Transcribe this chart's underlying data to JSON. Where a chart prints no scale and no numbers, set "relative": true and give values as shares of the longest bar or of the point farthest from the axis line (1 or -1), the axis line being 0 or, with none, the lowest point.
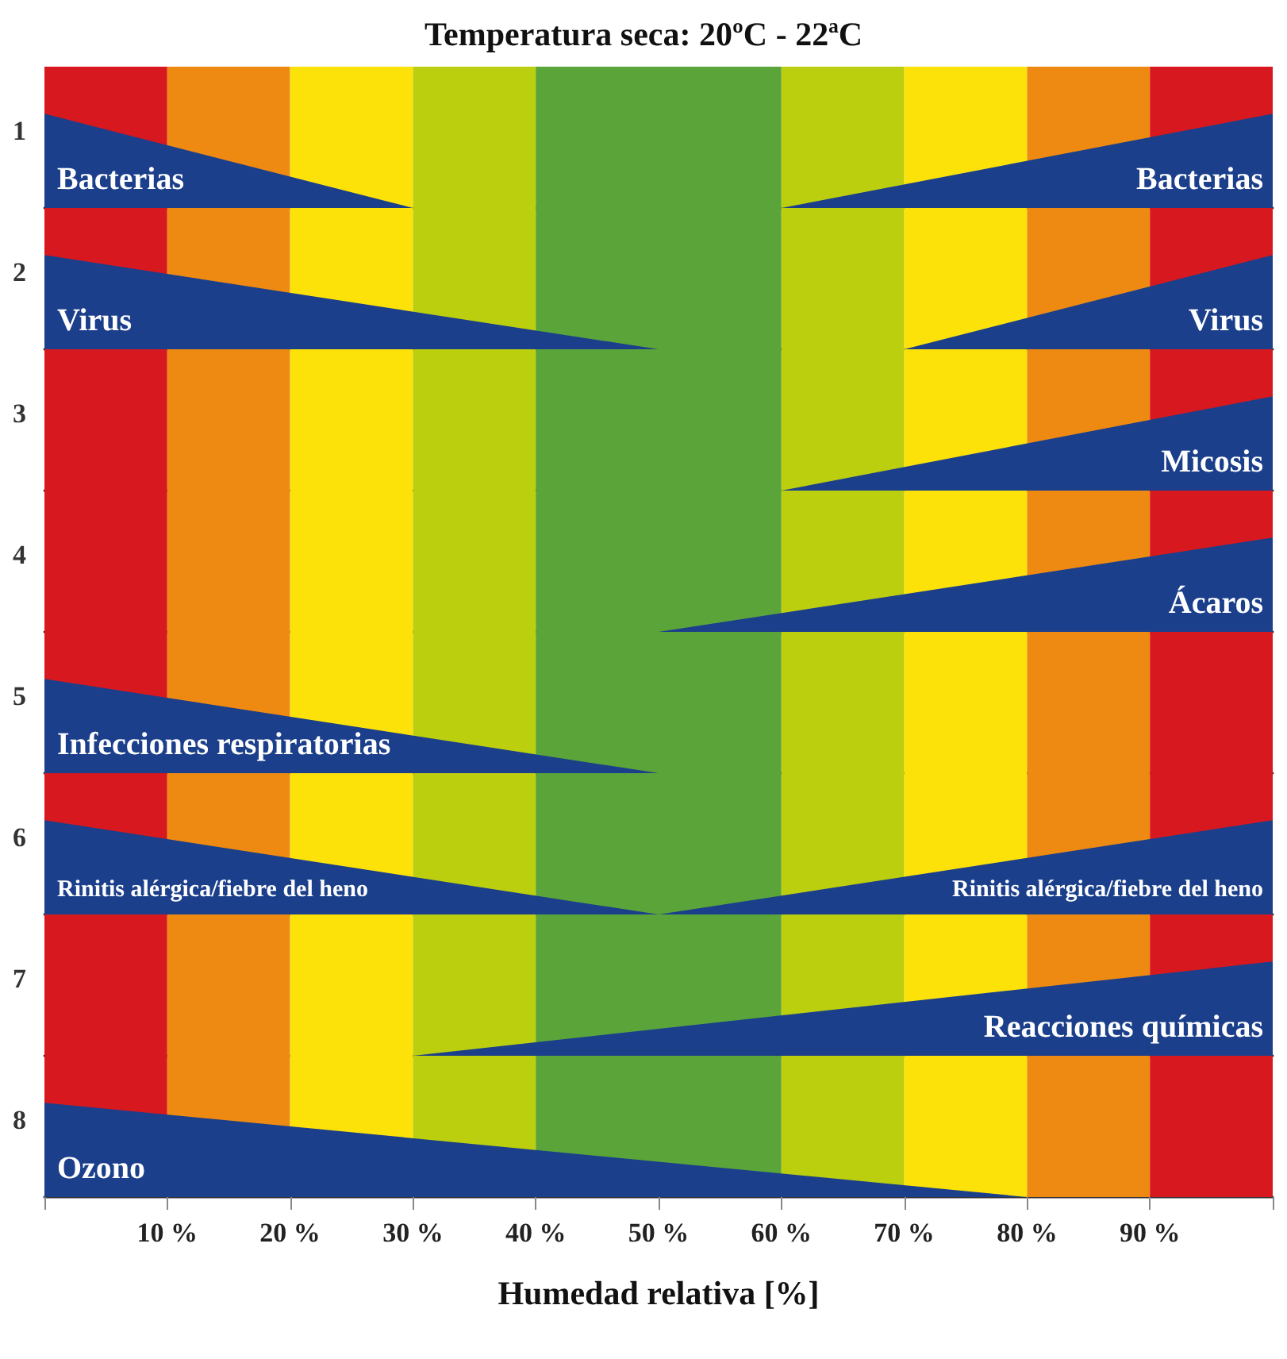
{
  "chart_data": [
    {
      "type": "area",
      "title": "Temperatura seca: 20ºC - 22ªC",
      "ylabel": "1",
      "relative": true,
      "xlim": [
        0,
        100
      ],
      "tick_labels": false,
      "legend": false,
      "grid": false,
      "series": [
        {
          "name": "Bacterias",
          "color": "#1b3f8b",
          "x": [
            0,
            30,
            60,
            100
          ],
          "values": [
            1,
            0,
            0,
            1
          ]
        }
      ],
      "bands": [
        {
          "axis": "x",
          "from": 0,
          "to": 10,
          "color": "#d7191f"
        },
        {
          "axis": "x",
          "from": 10,
          "to": 20,
          "color": "#ee8a12"
        },
        {
          "axis": "x",
          "from": 20,
          "to": 30,
          "color": "#fde20a"
        },
        {
          "axis": "x",
          "from": 30,
          "to": 40,
          "color": "#bccf0e"
        },
        {
          "axis": "x",
          "from": 40,
          "to": 60,
          "color": "#5ba43a"
        },
        {
          "axis": "x",
          "from": 60,
          "to": 70,
          "color": "#bccf0e"
        },
        {
          "axis": "x",
          "from": 70,
          "to": 80,
          "color": "#fde20a"
        },
        {
          "axis": "x",
          "from": 80,
          "to": 90,
          "color": "#ee8a12"
        },
        {
          "axis": "x",
          "from": 90,
          "to": 100,
          "color": "#d7191f"
        }
      ]
    },
    {
      "type": "area",
      "ylabel": "2",
      "relative": true,
      "xlim": [
        0,
        100
      ],
      "tick_labels": false,
      "legend": false,
      "grid": false,
      "series": [
        {
          "name": "Virus",
          "color": "#1b3f8b",
          "x": [
            0,
            50,
            70,
            100
          ],
          "values": [
            1,
            0,
            0,
            1
          ]
        }
      ],
      "bands": [
        {
          "axis": "x",
          "from": 0,
          "to": 10,
          "color": "#d7191f"
        },
        {
          "axis": "x",
          "from": 10,
          "to": 20,
          "color": "#ee8a12"
        },
        {
          "axis": "x",
          "from": 20,
          "to": 30,
          "color": "#fde20a"
        },
        {
          "axis": "x",
          "from": 30,
          "to": 40,
          "color": "#bccf0e"
        },
        {
          "axis": "x",
          "from": 40,
          "to": 60,
          "color": "#5ba43a"
        },
        {
          "axis": "x",
          "from": 60,
          "to": 70,
          "color": "#bccf0e"
        },
        {
          "axis": "x",
          "from": 70,
          "to": 80,
          "color": "#fde20a"
        },
        {
          "axis": "x",
          "from": 80,
          "to": 90,
          "color": "#ee8a12"
        },
        {
          "axis": "x",
          "from": 90,
          "to": 100,
          "color": "#d7191f"
        }
      ]
    },
    {
      "type": "area",
      "ylabel": "3",
      "relative": true,
      "xlim": [
        0,
        100
      ],
      "tick_labels": false,
      "legend": false,
      "grid": false,
      "series": [
        {
          "name": "Micosis",
          "color": "#1b3f8b",
          "x": [
            60,
            100
          ],
          "values": [
            0,
            1
          ]
        }
      ],
      "bands": [
        {
          "axis": "x",
          "from": 0,
          "to": 10,
          "color": "#d7191f"
        },
        {
          "axis": "x",
          "from": 10,
          "to": 20,
          "color": "#ee8a12"
        },
        {
          "axis": "x",
          "from": 20,
          "to": 30,
          "color": "#fde20a"
        },
        {
          "axis": "x",
          "from": 30,
          "to": 40,
          "color": "#bccf0e"
        },
        {
          "axis": "x",
          "from": 40,
          "to": 60,
          "color": "#5ba43a"
        },
        {
          "axis": "x",
          "from": 60,
          "to": 70,
          "color": "#bccf0e"
        },
        {
          "axis": "x",
          "from": 70,
          "to": 80,
          "color": "#fde20a"
        },
        {
          "axis": "x",
          "from": 80,
          "to": 90,
          "color": "#ee8a12"
        },
        {
          "axis": "x",
          "from": 90,
          "to": 100,
          "color": "#d7191f"
        }
      ]
    },
    {
      "type": "area",
      "ylabel": "4",
      "relative": true,
      "xlim": [
        0,
        100
      ],
      "tick_labels": false,
      "legend": false,
      "grid": false,
      "series": [
        {
          "name": "Ácaros",
          "color": "#1b3f8b",
          "x": [
            50,
            100
          ],
          "values": [
            0,
            1
          ]
        }
      ],
      "bands": [
        {
          "axis": "x",
          "from": 0,
          "to": 10,
          "color": "#d7191f"
        },
        {
          "axis": "x",
          "from": 10,
          "to": 20,
          "color": "#ee8a12"
        },
        {
          "axis": "x",
          "from": 20,
          "to": 30,
          "color": "#fde20a"
        },
        {
          "axis": "x",
          "from": 30,
          "to": 40,
          "color": "#bccf0e"
        },
        {
          "axis": "x",
          "from": 40,
          "to": 60,
          "color": "#5ba43a"
        },
        {
          "axis": "x",
          "from": 60,
          "to": 70,
          "color": "#bccf0e"
        },
        {
          "axis": "x",
          "from": 70,
          "to": 80,
          "color": "#fde20a"
        },
        {
          "axis": "x",
          "from": 80,
          "to": 90,
          "color": "#ee8a12"
        },
        {
          "axis": "x",
          "from": 90,
          "to": 100,
          "color": "#d7191f"
        }
      ]
    },
    {
      "type": "area",
      "ylabel": "5",
      "relative": true,
      "xlim": [
        0,
        100
      ],
      "tick_labels": false,
      "legend": false,
      "grid": false,
      "series": [
        {
          "name": "Infecciones respiratorias",
          "color": "#1b3f8b",
          "x": [
            0,
            50
          ],
          "values": [
            1,
            0
          ]
        }
      ],
      "bands": [
        {
          "axis": "x",
          "from": 0,
          "to": 10,
          "color": "#d7191f"
        },
        {
          "axis": "x",
          "from": 10,
          "to": 20,
          "color": "#ee8a12"
        },
        {
          "axis": "x",
          "from": 20,
          "to": 30,
          "color": "#fde20a"
        },
        {
          "axis": "x",
          "from": 30,
          "to": 40,
          "color": "#bccf0e"
        },
        {
          "axis": "x",
          "from": 40,
          "to": 60,
          "color": "#5ba43a"
        },
        {
          "axis": "x",
          "from": 60,
          "to": 70,
          "color": "#bccf0e"
        },
        {
          "axis": "x",
          "from": 70,
          "to": 80,
          "color": "#fde20a"
        },
        {
          "axis": "x",
          "from": 80,
          "to": 90,
          "color": "#ee8a12"
        },
        {
          "axis": "x",
          "from": 90,
          "to": 100,
          "color": "#d7191f"
        }
      ]
    },
    {
      "type": "area",
      "ylabel": "6",
      "relative": true,
      "xlim": [
        0,
        100
      ],
      "tick_labels": false,
      "legend": false,
      "grid": false,
      "series": [
        {
          "name": "Rinitis alérgica/fiebre del heno",
          "color": "#1b3f8b",
          "x": [
            0,
            50,
            100
          ],
          "values": [
            1,
            0,
            1
          ]
        }
      ],
      "bands": [
        {
          "axis": "x",
          "from": 0,
          "to": 10,
          "color": "#d7191f"
        },
        {
          "axis": "x",
          "from": 10,
          "to": 20,
          "color": "#ee8a12"
        },
        {
          "axis": "x",
          "from": 20,
          "to": 30,
          "color": "#fde20a"
        },
        {
          "axis": "x",
          "from": 30,
          "to": 40,
          "color": "#bccf0e"
        },
        {
          "axis": "x",
          "from": 40,
          "to": 60,
          "color": "#5ba43a"
        },
        {
          "axis": "x",
          "from": 60,
          "to": 70,
          "color": "#bccf0e"
        },
        {
          "axis": "x",
          "from": 70,
          "to": 80,
          "color": "#fde20a"
        },
        {
          "axis": "x",
          "from": 80,
          "to": 90,
          "color": "#ee8a12"
        },
        {
          "axis": "x",
          "from": 90,
          "to": 100,
          "color": "#d7191f"
        }
      ]
    },
    {
      "type": "area",
      "ylabel": "7",
      "relative": true,
      "xlim": [
        0,
        100
      ],
      "tick_labels": false,
      "legend": false,
      "grid": false,
      "series": [
        {
          "name": "Reacciones químicas",
          "color": "#1b3f8b",
          "x": [
            30,
            100
          ],
          "values": [
            0,
            1
          ]
        }
      ],
      "bands": [
        {
          "axis": "x",
          "from": 0,
          "to": 10,
          "color": "#d7191f"
        },
        {
          "axis": "x",
          "from": 10,
          "to": 20,
          "color": "#ee8a12"
        },
        {
          "axis": "x",
          "from": 20,
          "to": 30,
          "color": "#fde20a"
        },
        {
          "axis": "x",
          "from": 30,
          "to": 40,
          "color": "#bccf0e"
        },
        {
          "axis": "x",
          "from": 40,
          "to": 60,
          "color": "#5ba43a"
        },
        {
          "axis": "x",
          "from": 60,
          "to": 70,
          "color": "#bccf0e"
        },
        {
          "axis": "x",
          "from": 70,
          "to": 80,
          "color": "#fde20a"
        },
        {
          "axis": "x",
          "from": 80,
          "to": 90,
          "color": "#ee8a12"
        },
        {
          "axis": "x",
          "from": 90,
          "to": 100,
          "color": "#d7191f"
        }
      ]
    },
    {
      "type": "area",
      "ylabel": "8",
      "xlabel": "Humedad relativa [%]",
      "relative": true,
      "xlim": [
        0,
        100
      ],
      "tick_labels": "x",
      "legend": false,
      "grid": false,
      "xticks": [
        {
          "value": 0,
          "label": null
        },
        {
          "value": 10,
          "label": "10 %"
        },
        {
          "value": 20,
          "label": "20 %"
        },
        {
          "value": 30,
          "label": "30 %"
        },
        {
          "value": 40,
          "label": "40 %"
        },
        {
          "value": 50,
          "label": "50 %"
        },
        {
          "value": 60,
          "label": "60 %"
        },
        {
          "value": 70,
          "label": "70 %"
        },
        {
          "value": 80,
          "label": "80 %"
        },
        {
          "value": 90,
          "label": "90 %"
        },
        {
          "value": 100,
          "label": null
        }
      ],
      "series": [
        {
          "name": "Ozono",
          "color": "#1b3f8b",
          "x": [
            0,
            80
          ],
          "values": [
            1,
            0
          ]
        }
      ],
      "bands": [
        {
          "axis": "x",
          "from": 0,
          "to": 10,
          "color": "#d7191f"
        },
        {
          "axis": "x",
          "from": 10,
          "to": 20,
          "color": "#ee8a12"
        },
        {
          "axis": "x",
          "from": 20,
          "to": 30,
          "color": "#fde20a"
        },
        {
          "axis": "x",
          "from": 30,
          "to": 40,
          "color": "#bccf0e"
        },
        {
          "axis": "x",
          "from": 40,
          "to": 60,
          "color": "#5ba43a"
        },
        {
          "axis": "x",
          "from": 60,
          "to": 70,
          "color": "#bccf0e"
        },
        {
          "axis": "x",
          "from": 70,
          "to": 80,
          "color": "#fde20a"
        },
        {
          "axis": "x",
          "from": 80,
          "to": 90,
          "color": "#ee8a12"
        },
        {
          "axis": "x",
          "from": 90,
          "to": 100,
          "color": "#d7191f"
        }
      ]
    }
  ]
}
